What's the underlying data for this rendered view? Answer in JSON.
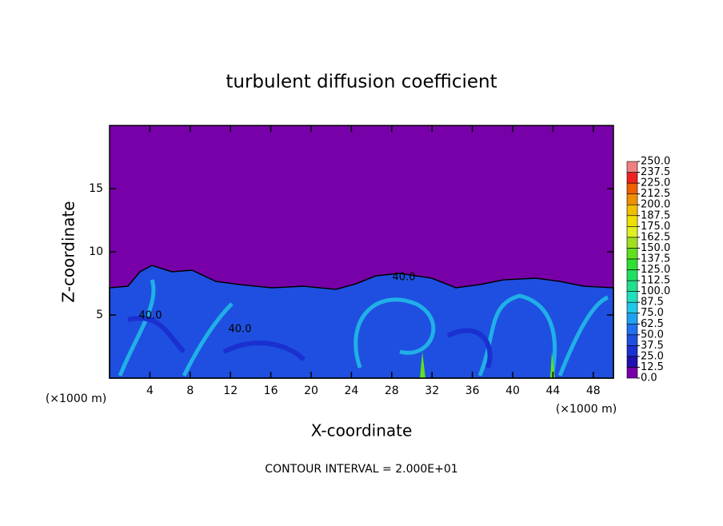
{
  "chart_data": {
    "type": "contour",
    "title": "turbulent diffusion coefficient",
    "x_label": "X-coordinate",
    "y_label": "Z-coordinate",
    "x_unit_left": "(×1000 m)",
    "x_unit_right": "(×1000 m)",
    "footer": "CONTOUR INTERVAL = 2.000E+01",
    "contour_labels": [
      "40.0",
      "40.0",
      "40.0"
    ],
    "xlim": [
      0,
      50
    ],
    "xticks": [
      4,
      8,
      12,
      16,
      20,
      24,
      28,
      32,
      36,
      40,
      44,
      48
    ],
    "ylim": [
      0,
      20
    ],
    "yticks": [
      5,
      10,
      15
    ],
    "colorbar": {
      "levels": [
        {
          "value": 0,
          "label": "0.0"
        },
        {
          "value": 12.5,
          "label": "12.5"
        },
        {
          "value": 25,
          "label": "25.0"
        },
        {
          "value": 37.5,
          "label": "37.5"
        },
        {
          "value": 50,
          "label": "50.0"
        },
        {
          "value": 62.5,
          "label": "62.5"
        },
        {
          "value": 75,
          "label": "75.0"
        },
        {
          "value": 87.5,
          "label": "87.5"
        },
        {
          "value": 100,
          "label": "100.0"
        },
        {
          "value": 112.5,
          "label": "112.5"
        },
        {
          "value": 125,
          "label": "125.0"
        },
        {
          "value": 137.5,
          "label": "137.5"
        },
        {
          "value": 150,
          "label": "150.0"
        },
        {
          "value": 162.5,
          "label": "162.5"
        },
        {
          "value": 175,
          "label": "175.0"
        },
        {
          "value": 187.5,
          "label": "187.5"
        },
        {
          "value": 200,
          "label": "200.0"
        },
        {
          "value": 212.5,
          "label": "212.5"
        },
        {
          "value": 225,
          "label": "225.0"
        },
        {
          "value": 237.5,
          "label": "237.5"
        },
        {
          "value": 250,
          "label": "250.0"
        }
      ],
      "colors": [
        "#7800a8",
        "#2010b0",
        "#1a30d0",
        "#1f4fe0",
        "#2070f0",
        "#20a0f0",
        "#20c8e8",
        "#20e0c0",
        "#20e090",
        "#20e060",
        "#30e030",
        "#60e020",
        "#a0e020",
        "#e0f020",
        "#f0e000",
        "#f0c000",
        "#f09000",
        "#f06000",
        "#f02020",
        "#f08080"
      ]
    }
  }
}
